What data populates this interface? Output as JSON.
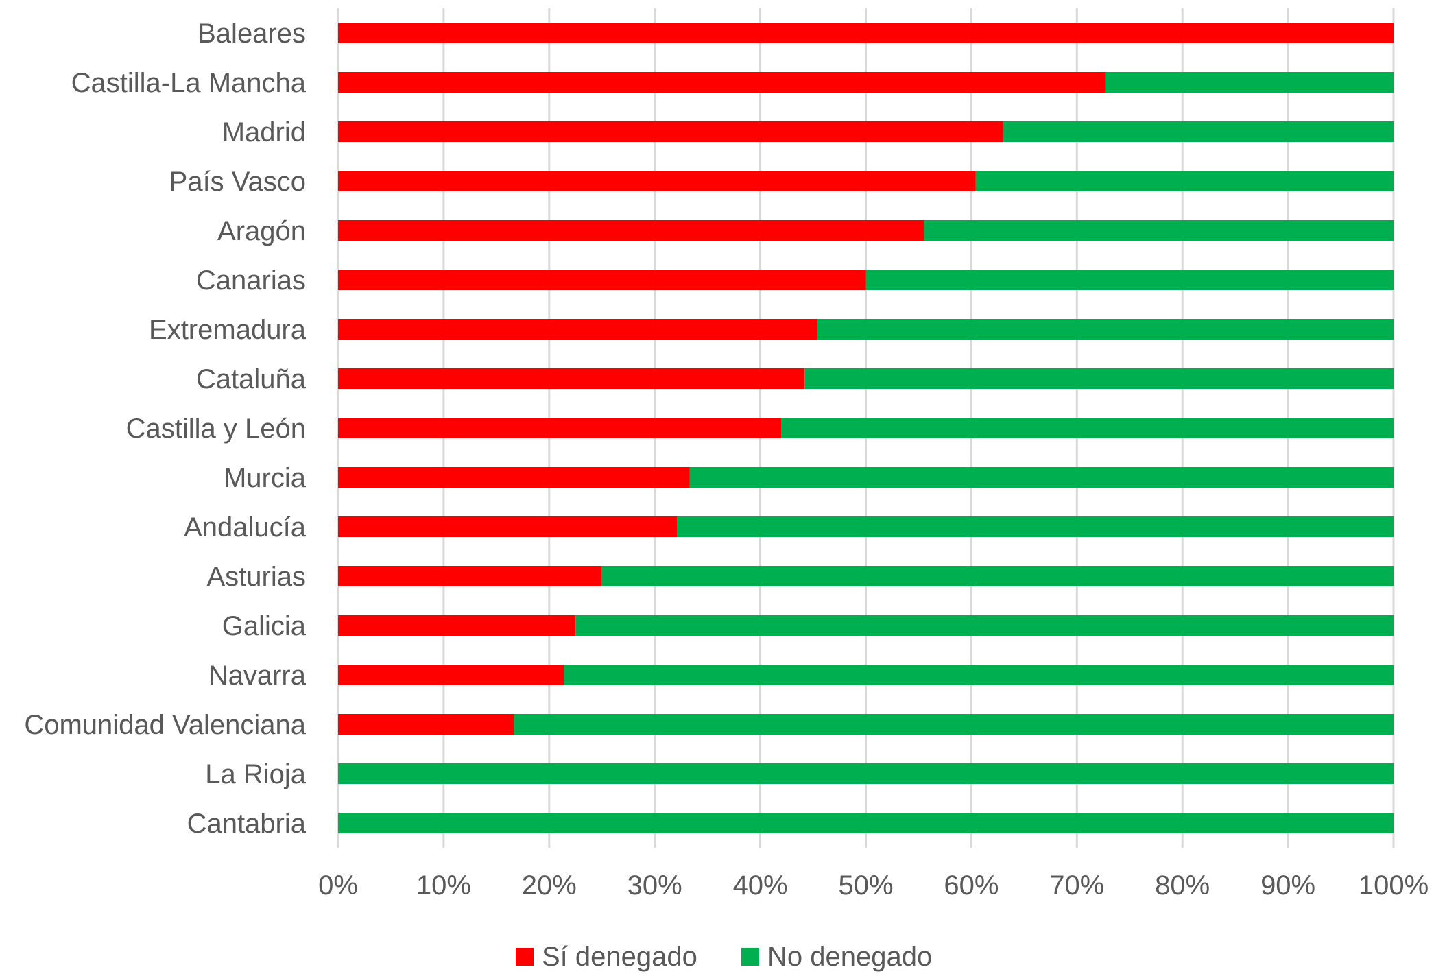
{
  "chart_data": {
    "type": "bar",
    "orientation": "horizontal",
    "stacked": "percent",
    "categories": [
      "Baleares",
      "Castilla-La Mancha",
      "Madrid",
      "País Vasco",
      "Aragón",
      "Canarias",
      "Extremadura",
      "Cataluña",
      "Castilla y León",
      "Murcia",
      "Andalucía",
      "Asturias",
      "Galicia",
      "Navarra",
      "Comunidad Valenciana",
      "La Rioja",
      "Cantabria"
    ],
    "series": [
      {
        "name": "Sí denegado",
        "color": "#FF0000",
        "values": [
          100,
          72.7,
          63,
          60.4,
          55.5,
          50,
          45.4,
          44.2,
          42,
          33.3,
          32.1,
          25,
          22.5,
          21.4,
          16.7,
          0,
          0
        ]
      },
      {
        "name": "No denegado",
        "color": "#00B050",
        "values": [
          0,
          27.3,
          37,
          39.6,
          44.5,
          50,
          54.6,
          55.8,
          58,
          66.7,
          67.9,
          75,
          77.5,
          78.6,
          83.3,
          100,
          100
        ]
      }
    ],
    "xlim": [
      0,
      100
    ],
    "xticks": [
      "0%",
      "10%",
      "20%",
      "30%",
      "40%",
      "50%",
      "60%",
      "70%",
      "80%",
      "90%",
      "100%"
    ],
    "grid": true,
    "gridColor": "#D9D9D9",
    "legend": "bottom",
    "title": "",
    "xlabel": "",
    "ylabel": ""
  }
}
